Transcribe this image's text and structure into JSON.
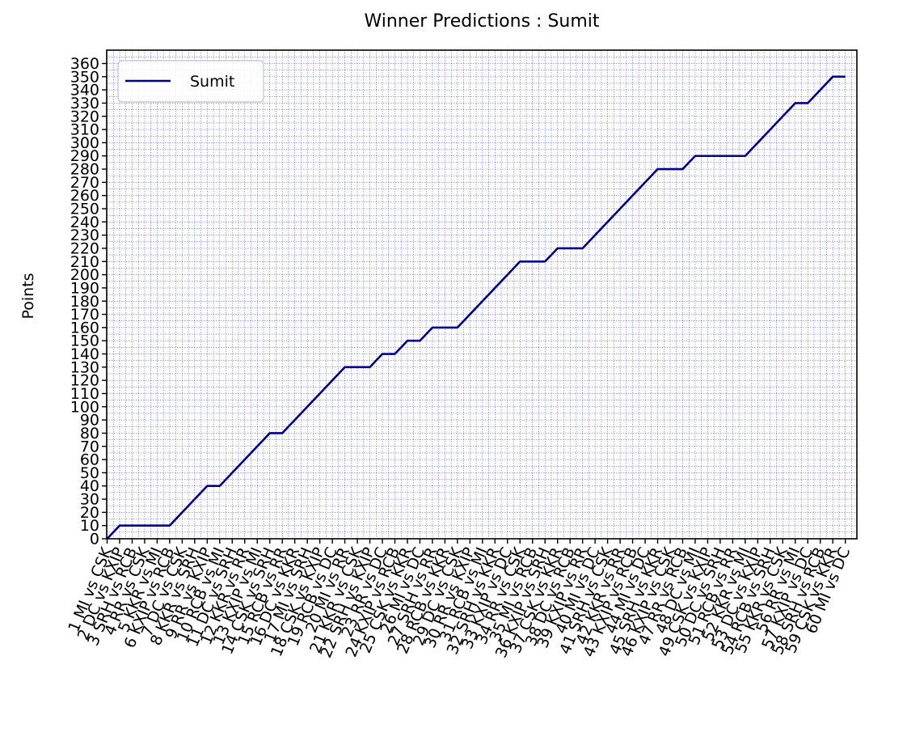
{
  "chart_data": {
    "type": "line",
    "title": "Winner Predictions : Sumit",
    "xlabel": "",
    "ylabel": "Points",
    "ylim": [
      0,
      360
    ],
    "yticks": [
      0,
      10,
      20,
      30,
      40,
      50,
      60,
      70,
      80,
      90,
      100,
      110,
      120,
      130,
      140,
      150,
      160,
      170,
      180,
      190,
      200,
      210,
      220,
      230,
      240,
      250,
      260,
      270,
      280,
      290,
      300,
      310,
      320,
      330,
      340,
      350,
      360
    ],
    "grid": true,
    "legend_position": "top-left",
    "colors": {
      "line": "#00008b",
      "grid": "#0000cd"
    },
    "categories": [
      "1 MI vs CSK",
      "2 DC vs KXIP",
      "3 SRH vs RCB",
      "4 RR vs CSK",
      "5 KKR vs MI",
      "6 KXIP vs RCB",
      "7 DC vs CSK",
      "8 KKR vs SRH",
      "9 RR vs KXIP",
      "10 RCB vs MI",
      "11 DC vs SRH",
      "12 KKR vs RR",
      "13 KXIP vs MI",
      "14 CSK vs SRH",
      "15 RCB vs RR",
      "16 DC vs KKR",
      "17 MI vs SRH",
      "18 CSK vs KXIP",
      "19 RCB vs DC",
      "20 MI vs RR",
      "21 KKR vs CSK",
      "22 SRH vs KXIP",
      "23 RR vs DC",
      "24 KXIP vs RCB",
      "25 CSK vs KKR",
      "26 MI vs DC",
      "27 SRH vs RR",
      "28 RCB vs KKR",
      "29 DC vs CSK",
      "30 RR vs KXIP",
      "31 RCB vs MI",
      "32 SRH vs KKR",
      "33 KXIP vs DC",
      "34 RR vs CSK",
      "35 MI vs RCB",
      "36 KXIP vs SRH",
      "37 CSK vs KKR",
      "38 DC vs RCB",
      "39 KXIP vs RR",
      "40 MI vs DC",
      "41 SRH vs CSK",
      "42 KKR vs RR",
      "43 KXIP vs RCB",
      "44 MI vs DC",
      "45 SRH vs KKR",
      "46 KXIP vs CSK",
      "47 RR vs RCB",
      "48 DC vs MI",
      "49 CSK vs KXIP",
      "50 DC vs SRH",
      "51 RCB vs RR",
      "52 KKR vs MI",
      "53 DC vs KXIP",
      "54 RCB vs SRH",
      "55 KKR vs CSK",
      "56 RR vs MI",
      "57 KXIP vs DC",
      "58 SRH vs RCB",
      "59 CSK vs KKR",
      "60 MI vs DC"
    ],
    "series": [
      {
        "name": "Sumit",
        "values": [
          0,
          10,
          10,
          10,
          10,
          10,
          20,
          30,
          40,
          40,
          50,
          60,
          70,
          80,
          80,
          90,
          100,
          110,
          120,
          130,
          130,
          130,
          140,
          140,
          150,
          150,
          160,
          160,
          160,
          170,
          180,
          190,
          200,
          210,
          210,
          210,
          220,
          220,
          220,
          230,
          240,
          250,
          260,
          270,
          280,
          280,
          280,
          290,
          290,
          290,
          290,
          290,
          300,
          310,
          320,
          330,
          330,
          340,
          350,
          350
        ]
      }
    ]
  }
}
